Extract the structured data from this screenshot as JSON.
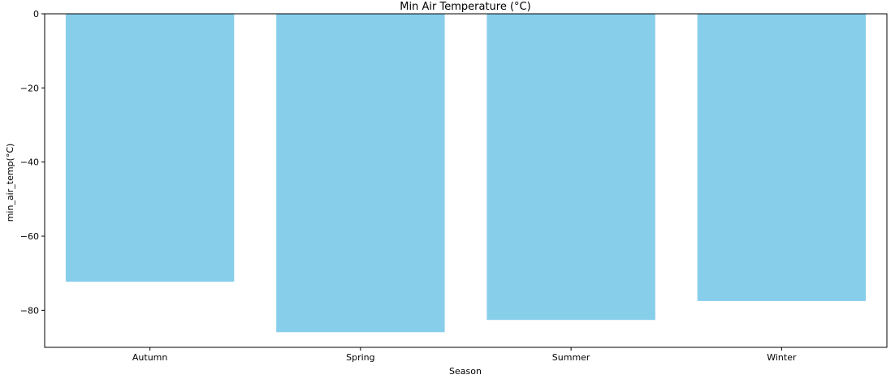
{
  "chart_data": {
    "type": "bar",
    "title": "Min Air Temperature (°C)",
    "xlabel": "Season",
    "ylabel": "min_air_temp(°C)",
    "categories": [
      "Autumn",
      "Spring",
      "Summer",
      "Winter"
    ],
    "values": [
      -72.3,
      -85.9,
      -82.6,
      -77.5
    ],
    "ylim": [
      -90,
      0
    ],
    "yticks": [
      0,
      -20,
      -40,
      -60,
      -80
    ],
    "bar_color": "#87CEEB",
    "grid": false,
    "legend": "none"
  }
}
